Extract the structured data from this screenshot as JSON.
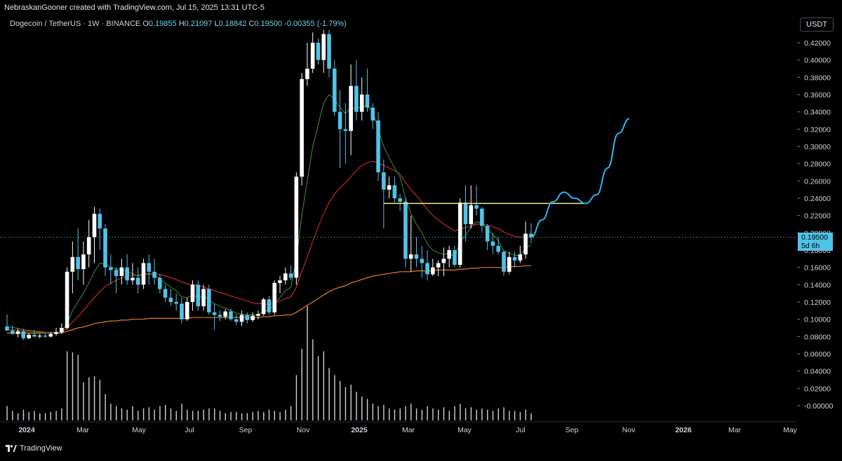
{
  "header": {
    "text": "NebraskanGooner created with TradingView.com, Jul 15, 2025 13:31 UTC-5"
  },
  "legend": {
    "symbol": "Dogecoin / TetherUS · 1W · BINANCE",
    "o_label": "O",
    "o": "0.19855",
    "h_label": "H",
    "h": "0.21097",
    "l_label": "L",
    "l": "0.18842",
    "c_label": "C",
    "c": "0.19500",
    "change": "-0.00355 (-1.79%)"
  },
  "currency": "USDT",
  "current_price": {
    "value": "0.19500",
    "countdown": "5d 6h"
  },
  "footer": {
    "logo": "TradingView"
  },
  "colors": {
    "up_candle": "#ffffff",
    "down_candle": "#4fc3e8",
    "ema_fast": "#2e7d32",
    "ema_mid": "#c62828",
    "ema_slow": "#e67e22",
    "level_line": "#f3ef8c",
    "projection": "#29b6f6",
    "price_line": "#4fc3e8"
  },
  "chart_data": {
    "type": "candlestick",
    "symbol": "DOGEUSDT",
    "timeframe": "1W",
    "x_tick_labels": [
      "2024",
      "Mar",
      "May",
      "Jul",
      "Sep",
      "Nov",
      "2025",
      "Mar",
      "May",
      "Jul",
      "Sep",
      "Nov",
      "2026",
      "Mar",
      "May"
    ],
    "y_tick_labels": [
      "0.42000",
      "0.40000",
      "0.38000",
      "0.36000",
      "0.34000",
      "0.32000",
      "0.30000",
      "0.28000",
      "0.26000",
      "0.24000",
      "0.22000",
      "0.20000",
      "0.18000",
      "0.16000",
      "0.14000",
      "0.12000",
      "0.10000",
      "0.08000",
      "0.06000",
      "0.04000",
      "0.02000",
      "-0.00000"
    ],
    "y_range": [
      -0.002,
      0.435
    ],
    "candles": [
      [
        0.0915,
        0.1055,
        0.0865,
        0.087
      ],
      [
        0.087,
        0.093,
        0.082,
        0.083
      ],
      [
        0.083,
        0.089,
        0.079,
        0.086
      ],
      [
        0.086,
        0.089,
        0.076,
        0.078
      ],
      [
        0.078,
        0.084,
        0.077,
        0.082
      ],
      [
        0.082,
        0.088,
        0.079,
        0.08
      ],
      [
        0.08,
        0.083,
        0.078,
        0.081
      ],
      [
        0.081,
        0.084,
        0.078,
        0.08
      ],
      [
        0.08,
        0.085,
        0.079,
        0.083
      ],
      [
        0.083,
        0.09,
        0.081,
        0.085
      ],
      [
        0.085,
        0.095,
        0.083,
        0.09
      ],
      [
        0.09,
        0.16,
        0.088,
        0.155
      ],
      [
        0.155,
        0.19,
        0.13,
        0.172
      ],
      [
        0.172,
        0.205,
        0.145,
        0.158
      ],
      [
        0.158,
        0.19,
        0.14,
        0.175
      ],
      [
        0.175,
        0.215,
        0.16,
        0.195
      ],
      [
        0.195,
        0.23,
        0.165,
        0.222
      ],
      [
        0.222,
        0.228,
        0.18,
        0.205
      ],
      [
        0.205,
        0.21,
        0.15,
        0.16
      ],
      [
        0.16,
        0.175,
        0.14,
        0.157
      ],
      [
        0.157,
        0.16,
        0.13,
        0.15
      ],
      [
        0.15,
        0.17,
        0.14,
        0.16
      ],
      [
        0.16,
        0.175,
        0.14,
        0.145
      ],
      [
        0.145,
        0.165,
        0.14,
        0.148
      ],
      [
        0.148,
        0.16,
        0.13,
        0.14
      ],
      [
        0.14,
        0.17,
        0.135,
        0.165
      ],
      [
        0.165,
        0.175,
        0.14,
        0.155
      ],
      [
        0.155,
        0.17,
        0.14,
        0.148
      ],
      [
        0.148,
        0.152,
        0.13,
        0.135
      ],
      [
        0.135,
        0.14,
        0.12,
        0.125
      ],
      [
        0.125,
        0.135,
        0.115,
        0.12
      ],
      [
        0.12,
        0.13,
        0.11,
        0.118
      ],
      [
        0.118,
        0.125,
        0.095,
        0.1
      ],
      [
        0.1,
        0.125,
        0.098,
        0.12
      ],
      [
        0.12,
        0.145,
        0.11,
        0.14
      ],
      [
        0.14,
        0.145,
        0.11,
        0.115
      ],
      [
        0.115,
        0.14,
        0.11,
        0.135
      ],
      [
        0.135,
        0.14,
        0.105,
        0.108
      ],
      [
        0.108,
        0.118,
        0.088,
        0.105
      ],
      [
        0.105,
        0.11,
        0.098,
        0.103
      ],
      [
        0.103,
        0.112,
        0.1,
        0.109
      ],
      [
        0.109,
        0.112,
        0.098,
        0.1
      ],
      [
        0.1,
        0.106,
        0.093,
        0.097
      ],
      [
        0.097,
        0.11,
        0.092,
        0.105
      ],
      [
        0.105,
        0.108,
        0.095,
        0.099
      ],
      [
        0.099,
        0.108,
        0.097,
        0.104
      ],
      [
        0.104,
        0.11,
        0.1,
        0.106
      ],
      [
        0.106,
        0.125,
        0.104,
        0.123
      ],
      [
        0.123,
        0.127,
        0.105,
        0.108
      ],
      [
        0.108,
        0.145,
        0.105,
        0.142
      ],
      [
        0.142,
        0.15,
        0.13,
        0.145
      ],
      [
        0.145,
        0.16,
        0.14,
        0.153
      ],
      [
        0.153,
        0.162,
        0.145,
        0.148
      ],
      [
        0.148,
        0.27,
        0.14,
        0.265
      ],
      [
        0.265,
        0.385,
        0.255,
        0.378
      ],
      [
        0.378,
        0.42,
        0.37,
        0.39
      ],
      [
        0.39,
        0.432,
        0.385,
        0.42
      ],
      [
        0.42,
        0.425,
        0.395,
        0.4
      ],
      [
        0.4,
        0.435,
        0.385,
        0.43
      ],
      [
        0.43,
        0.435,
        0.38,
        0.39
      ],
      [
        0.39,
        0.4,
        0.335,
        0.34
      ],
      [
        0.34,
        0.365,
        0.275,
        0.32
      ],
      [
        0.32,
        0.35,
        0.28,
        0.318
      ],
      [
        0.318,
        0.395,
        0.29,
        0.37
      ],
      [
        0.37,
        0.4,
        0.33,
        0.34
      ],
      [
        0.34,
        0.38,
        0.33,
        0.36
      ],
      [
        0.36,
        0.39,
        0.34,
        0.345
      ],
      [
        0.345,
        0.35,
        0.32,
        0.33
      ],
      [
        0.33,
        0.34,
        0.26,
        0.27
      ],
      [
        0.27,
        0.285,
        0.205,
        0.25
      ],
      [
        0.25,
        0.265,
        0.24,
        0.255
      ],
      [
        0.255,
        0.265,
        0.235,
        0.24
      ],
      [
        0.24,
        0.245,
        0.225,
        0.236
      ],
      [
        0.236,
        0.24,
        0.16,
        0.17
      ],
      [
        0.17,
        0.22,
        0.155,
        0.175
      ],
      [
        0.175,
        0.195,
        0.16,
        0.17
      ],
      [
        0.17,
        0.185,
        0.148,
        0.165
      ],
      [
        0.165,
        0.18,
        0.145,
        0.152
      ],
      [
        0.152,
        0.17,
        0.15,
        0.16
      ],
      [
        0.16,
        0.168,
        0.15,
        0.165
      ],
      [
        0.165,
        0.183,
        0.15,
        0.17
      ],
      [
        0.17,
        0.185,
        0.16,
        0.18
      ],
      [
        0.18,
        0.185,
        0.16,
        0.163
      ],
      [
        0.163,
        0.24,
        0.16,
        0.235
      ],
      [
        0.235,
        0.255,
        0.19,
        0.21
      ],
      [
        0.21,
        0.255,
        0.205,
        0.232
      ],
      [
        0.232,
        0.255,
        0.22,
        0.228
      ],
      [
        0.228,
        0.23,
        0.2,
        0.208
      ],
      [
        0.208,
        0.21,
        0.18,
        0.19
      ],
      [
        0.19,
        0.2,
        0.175,
        0.185
      ],
      [
        0.185,
        0.195,
        0.175,
        0.178
      ],
      [
        0.178,
        0.18,
        0.15,
        0.155
      ],
      [
        0.155,
        0.178,
        0.152,
        0.172
      ],
      [
        0.172,
        0.178,
        0.16,
        0.168
      ],
      [
        0.168,
        0.185,
        0.165,
        0.175
      ],
      [
        0.175,
        0.213,
        0.17,
        0.199
      ],
      [
        0.199,
        0.211,
        0.188,
        0.195
      ]
    ],
    "ema_fast": [
      0.0915,
      0.0905,
      0.0895,
      0.088,
      0.087,
      0.086,
      0.085,
      0.084,
      0.084,
      0.084,
      0.085,
      0.095,
      0.11,
      0.12,
      0.13,
      0.142,
      0.155,
      0.165,
      0.163,
      0.161,
      0.158,
      0.158,
      0.155,
      0.153,
      0.15,
      0.152,
      0.152,
      0.151,
      0.147,
      0.142,
      0.137,
      0.133,
      0.126,
      0.125,
      0.128,
      0.125,
      0.127,
      0.122,
      0.118,
      0.115,
      0.113,
      0.11,
      0.107,
      0.106,
      0.105,
      0.105,
      0.105,
      0.11,
      0.11,
      0.118,
      0.125,
      0.133,
      0.137,
      0.17,
      0.22,
      0.26,
      0.3,
      0.325,
      0.35,
      0.36,
      0.355,
      0.345,
      0.338,
      0.345,
      0.343,
      0.347,
      0.346,
      0.341,
      0.32,
      0.3,
      0.287,
      0.275,
      0.265,
      0.24,
      0.222,
      0.21,
      0.2,
      0.187,
      0.18,
      0.177,
      0.175,
      0.177,
      0.172,
      0.19,
      0.197,
      0.207,
      0.213,
      0.211,
      0.204,
      0.198,
      0.191,
      0.179,
      0.177,
      0.174,
      0.174,
      0.182,
      0.186
    ],
    "ema_mid": [
      0.088,
      0.088,
      0.087,
      0.087,
      0.086,
      0.086,
      0.086,
      0.085,
      0.085,
      0.085,
      0.085,
      0.09,
      0.097,
      0.103,
      0.11,
      0.118,
      0.125,
      0.132,
      0.138,
      0.142,
      0.145,
      0.148,
      0.15,
      0.151,
      0.151,
      0.152,
      0.153,
      0.153,
      0.152,
      0.15,
      0.148,
      0.146,
      0.143,
      0.141,
      0.14,
      0.139,
      0.137,
      0.135,
      0.133,
      0.131,
      0.129,
      0.127,
      0.125,
      0.123,
      0.121,
      0.119,
      0.118,
      0.118,
      0.117,
      0.119,
      0.121,
      0.124,
      0.126,
      0.137,
      0.155,
      0.172,
      0.19,
      0.207,
      0.222,
      0.235,
      0.245,
      0.252,
      0.258,
      0.265,
      0.272,
      0.278,
      0.281,
      0.283,
      0.281,
      0.278,
      0.275,
      0.272,
      0.268,
      0.258,
      0.25,
      0.243,
      0.235,
      0.227,
      0.22,
      0.215,
      0.21,
      0.206,
      0.202,
      0.205,
      0.206,
      0.208,
      0.21,
      0.21,
      0.209,
      0.207,
      0.205,
      0.201,
      0.198,
      0.196,
      0.195,
      0.195,
      0.195
    ],
    "ema_slow": [
      0.084,
      0.084,
      0.084,
      0.084,
      0.084,
      0.084,
      0.084,
      0.084,
      0.084,
      0.084,
      0.084,
      0.086,
      0.088,
      0.09,
      0.091,
      0.093,
      0.095,
      0.096,
      0.097,
      0.098,
      0.098,
      0.099,
      0.099,
      0.1,
      0.1,
      0.1,
      0.101,
      0.101,
      0.101,
      0.101,
      0.101,
      0.101,
      0.101,
      0.101,
      0.102,
      0.102,
      0.102,
      0.102,
      0.102,
      0.102,
      0.102,
      0.102,
      0.102,
      0.102,
      0.102,
      0.102,
      0.102,
      0.103,
      0.103,
      0.104,
      0.104,
      0.105,
      0.105,
      0.108,
      0.112,
      0.116,
      0.12,
      0.124,
      0.128,
      0.132,
      0.135,
      0.137,
      0.139,
      0.142,
      0.144,
      0.146,
      0.148,
      0.15,
      0.151,
      0.152,
      0.153,
      0.154,
      0.155,
      0.155,
      0.155,
      0.156,
      0.156,
      0.156,
      0.156,
      0.157,
      0.157,
      0.157,
      0.157,
      0.158,
      0.158,
      0.159,
      0.159,
      0.16,
      0.16,
      0.16,
      0.16,
      0.16,
      0.161,
      0.161,
      0.161,
      0.162,
      0.162
    ],
    "volume_relative": [
      0.12,
      0.08,
      0.06,
      0.09,
      0.07,
      0.08,
      0.06,
      0.06,
      0.07,
      0.08,
      0.1,
      0.58,
      0.57,
      0.55,
      0.32,
      0.36,
      0.37,
      0.34,
      0.22,
      0.14,
      0.12,
      0.1,
      0.09,
      0.12,
      0.08,
      0.1,
      0.11,
      0.09,
      0.12,
      0.13,
      0.1,
      0.08,
      0.14,
      0.09,
      0.08,
      0.08,
      0.09,
      0.1,
      0.1,
      0.08,
      0.06,
      0.07,
      0.07,
      0.06,
      0.06,
      0.07,
      0.08,
      0.07,
      0.09,
      0.08,
      0.07,
      0.09,
      0.12,
      0.38,
      0.6,
      0.96,
      0.68,
      0.54,
      0.58,
      0.44,
      0.38,
      0.33,
      0.28,
      0.3,
      0.24,
      0.2,
      0.18,
      0.14,
      0.12,
      0.13,
      0.1,
      0.09,
      0.1,
      0.12,
      0.14,
      0.1,
      0.09,
      0.12,
      0.1,
      0.09,
      0.11,
      0.08,
      0.12,
      0.14,
      0.1,
      0.11,
      0.09,
      0.1,
      0.09,
      0.08,
      0.1,
      0.11,
      0.08,
      0.08,
      0.07,
      0.09,
      0.06
    ],
    "horizontal_level": {
      "value": 0.234,
      "from_index": 69,
      "to_index": 110
    },
    "projection_path": [
      [
        96,
        0.195
      ],
      [
        98,
        0.215
      ],
      [
        100,
        0.236
      ],
      [
        102,
        0.247
      ],
      [
        104,
        0.24
      ],
      [
        106,
        0.234
      ],
      [
        108,
        0.244
      ],
      [
        110,
        0.275
      ],
      [
        112,
        0.315
      ],
      [
        114,
        0.332
      ]
    ],
    "current_price": 0.195
  }
}
